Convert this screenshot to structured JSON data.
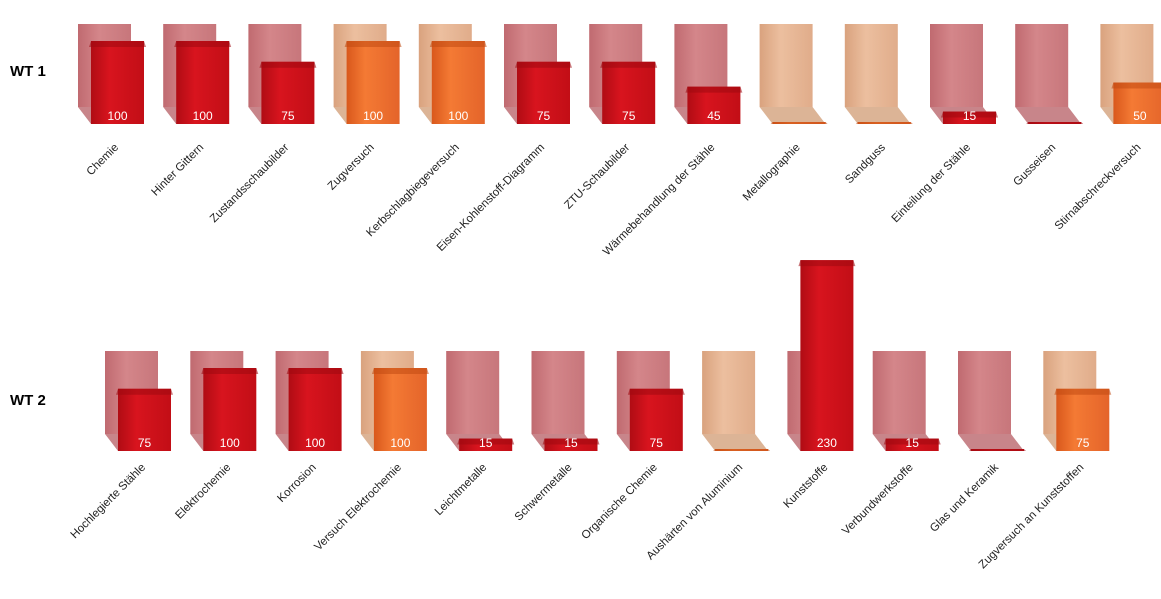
{
  "chart_data": [
    {
      "type": "bar",
      "row_label": "WT 1",
      "max_reference": 100,
      "categories": [
        "Chemie",
        "Hinter Gittern",
        "Zustandsschaubilder",
        "Zugversuch",
        "Kerbschlagbiegeversuch",
        "Eisen-Kohlenstoff-Diagramm",
        "ZTU-Schaubilder",
        "Wärmebehandlung der Stähle",
        "Metallographie",
        "Sandguss",
        "Einteilung der Stähle",
        "Gusseisen",
        "Stirnabschreckversuch"
      ],
      "values": [
        100,
        100,
        75,
        100,
        100,
        75,
        75,
        45,
        0,
        0,
        15,
        0,
        50
      ],
      "value_labels": [
        "100",
        "100",
        "75",
        "100",
        "100",
        "75",
        "75",
        "45",
        "",
        "",
        "15",
        "",
        "50"
      ],
      "kind": [
        "red",
        "red",
        "red",
        "orange",
        "orange",
        "red",
        "red",
        "red",
        "orange",
        "orange",
        "red",
        "red",
        "orange"
      ]
    },
    {
      "type": "bar",
      "row_label": "WT 2",
      "max_reference": 100,
      "categories": [
        "Hochlegierte Stähle",
        "Elektrochemie",
        "Korrosion",
        "Versuch Elektrochemie",
        "Leichtmetalle",
        "Schwermetalle",
        "Organische Chemie",
        "Aushärten von Aluminium",
        "Kunststoffe",
        "Verbundwerkstoffe",
        "Glas und Keramik",
        "Zugversuch an Kunststoffen"
      ],
      "values": [
        75,
        100,
        100,
        100,
        15,
        15,
        75,
        0,
        230,
        15,
        0,
        75
      ],
      "value_labels": [
        "75",
        "100",
        "100",
        "100",
        "15",
        "15",
        "75",
        "",
        "230",
        "15",
        "",
        "75"
      ],
      "kind": [
        "red",
        "red",
        "red",
        "orange",
        "red",
        "red",
        "red",
        "orange",
        "red",
        "red",
        "red",
        "orange"
      ]
    }
  ],
  "colors": {
    "red_front": "#d0101a",
    "red_dark": "#9e0a10",
    "red_back": "#cc7c80",
    "orange_front": "#ec6a2a",
    "orange_dark": "#c14a12",
    "orange_back": "#e3b292"
  }
}
